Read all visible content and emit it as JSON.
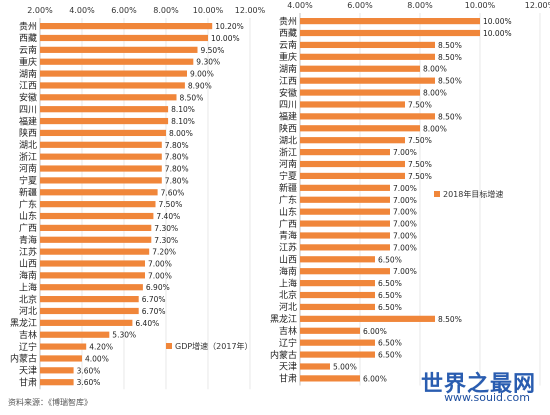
{
  "chart_data": [
    {
      "type": "bar",
      "orientation": "horizontal",
      "xlim": [
        2,
        12
      ],
      "ticks": [
        "2.00%",
        "4.00%",
        "6.00%",
        "8.00%",
        "10.00%",
        "12.00%"
      ],
      "categories": [
        "贵州",
        "西藏",
        "云南",
        "重庆",
        "湖南",
        "江西",
        "安徽",
        "四川",
        "福建",
        "陕西",
        "湖北",
        "浙江",
        "河南",
        "宁夏",
        "新疆",
        "广东",
        "山东",
        "广西",
        "青海",
        "江苏",
        "山西",
        "海南",
        "上海",
        "北京",
        "河北",
        "黑龙江",
        "吉林",
        "辽宁",
        "内蒙古",
        "天津",
        "甘肃"
      ],
      "values": [
        10.2,
        10.0,
        9.5,
        9.3,
        9.0,
        8.9,
        8.5,
        8.1,
        8.1,
        8.0,
        7.8,
        7.8,
        7.8,
        7.8,
        7.6,
        7.5,
        7.4,
        7.3,
        7.3,
        7.2,
        7.0,
        7.0,
        6.9,
        6.7,
        6.7,
        6.4,
        5.3,
        4.2,
        4.0,
        3.6,
        3.6
      ],
      "value_labels": [
        "10.20%",
        "10.00%",
        "9.50%",
        "9.30%",
        "9.00%",
        "8.90%",
        "8.50%",
        "8.10%",
        "8.10%",
        "8.00%",
        "7.80%",
        "7.80%",
        "7.80%",
        "7.80%",
        "7.60%",
        "7.50%",
        "7.40%",
        "7.30%",
        "7.30%",
        "7.20%",
        "7.00%",
        "7.00%",
        "6.90%",
        "6.70%",
        "6.70%",
        "6.40%",
        "5.30%",
        "4.20%",
        "4.00%",
        "3.60%",
        "3.60%"
      ],
      "series_name": "GDP增速（2017年）",
      "color": "#f0863a",
      "legend_position": "bottom-right"
    },
    {
      "type": "bar",
      "orientation": "horizontal",
      "xlim": [
        4,
        12
      ],
      "ticks": [
        "4.00%",
        "6.00%",
        "8.00%",
        "10.00%",
        "12.00%"
      ],
      "categories": [
        "贵州",
        "西藏",
        "云南",
        "重庆",
        "湖南",
        "江西",
        "安徽",
        "四川",
        "福建",
        "陕西",
        "湖北",
        "浙江",
        "河南",
        "宁夏",
        "新疆",
        "广东",
        "山东",
        "广西",
        "青海",
        "江苏",
        "山西",
        "海南",
        "上海",
        "北京",
        "河北",
        "黑龙江",
        "吉林",
        "辽宁",
        "内蒙古",
        "天津",
        "甘肃"
      ],
      "values": [
        10.0,
        10.0,
        8.5,
        8.5,
        8.0,
        8.5,
        8.0,
        7.5,
        8.5,
        8.0,
        7.5,
        7.0,
        7.5,
        7.5,
        7.0,
        7.0,
        7.0,
        7.0,
        7.0,
        7.0,
        6.5,
        7.0,
        6.5,
        6.5,
        6.5,
        8.5,
        6.0,
        6.5,
        6.5,
        5.0,
        6.0
      ],
      "value_labels": [
        "10.00%",
        "10.00%",
        "8.50%",
        "8.50%",
        "8.00%",
        "8.50%",
        "8.00%",
        "7.50%",
        "8.50%",
        "8.00%",
        "7.50%",
        "7.00%",
        "7.50%",
        "7.50%",
        "7.00%",
        "7.00%",
        "7.00%",
        "7.00%",
        "7.00%",
        "7.00%",
        "6.50%",
        "7.00%",
        "6.50%",
        "6.50%",
        "6.50%",
        "8.50%",
        "6.00%",
        "6.50%",
        "6.50%",
        "5.00%",
        "6.00%"
      ],
      "series_name": "2018年目标增速",
      "color": "#f0863a",
      "legend_position": "right"
    }
  ],
  "source_text": "资料来源：《博瑞智库》",
  "watermark": {
    "main": "世界之最网",
    "sub": "www.souid.com"
  }
}
